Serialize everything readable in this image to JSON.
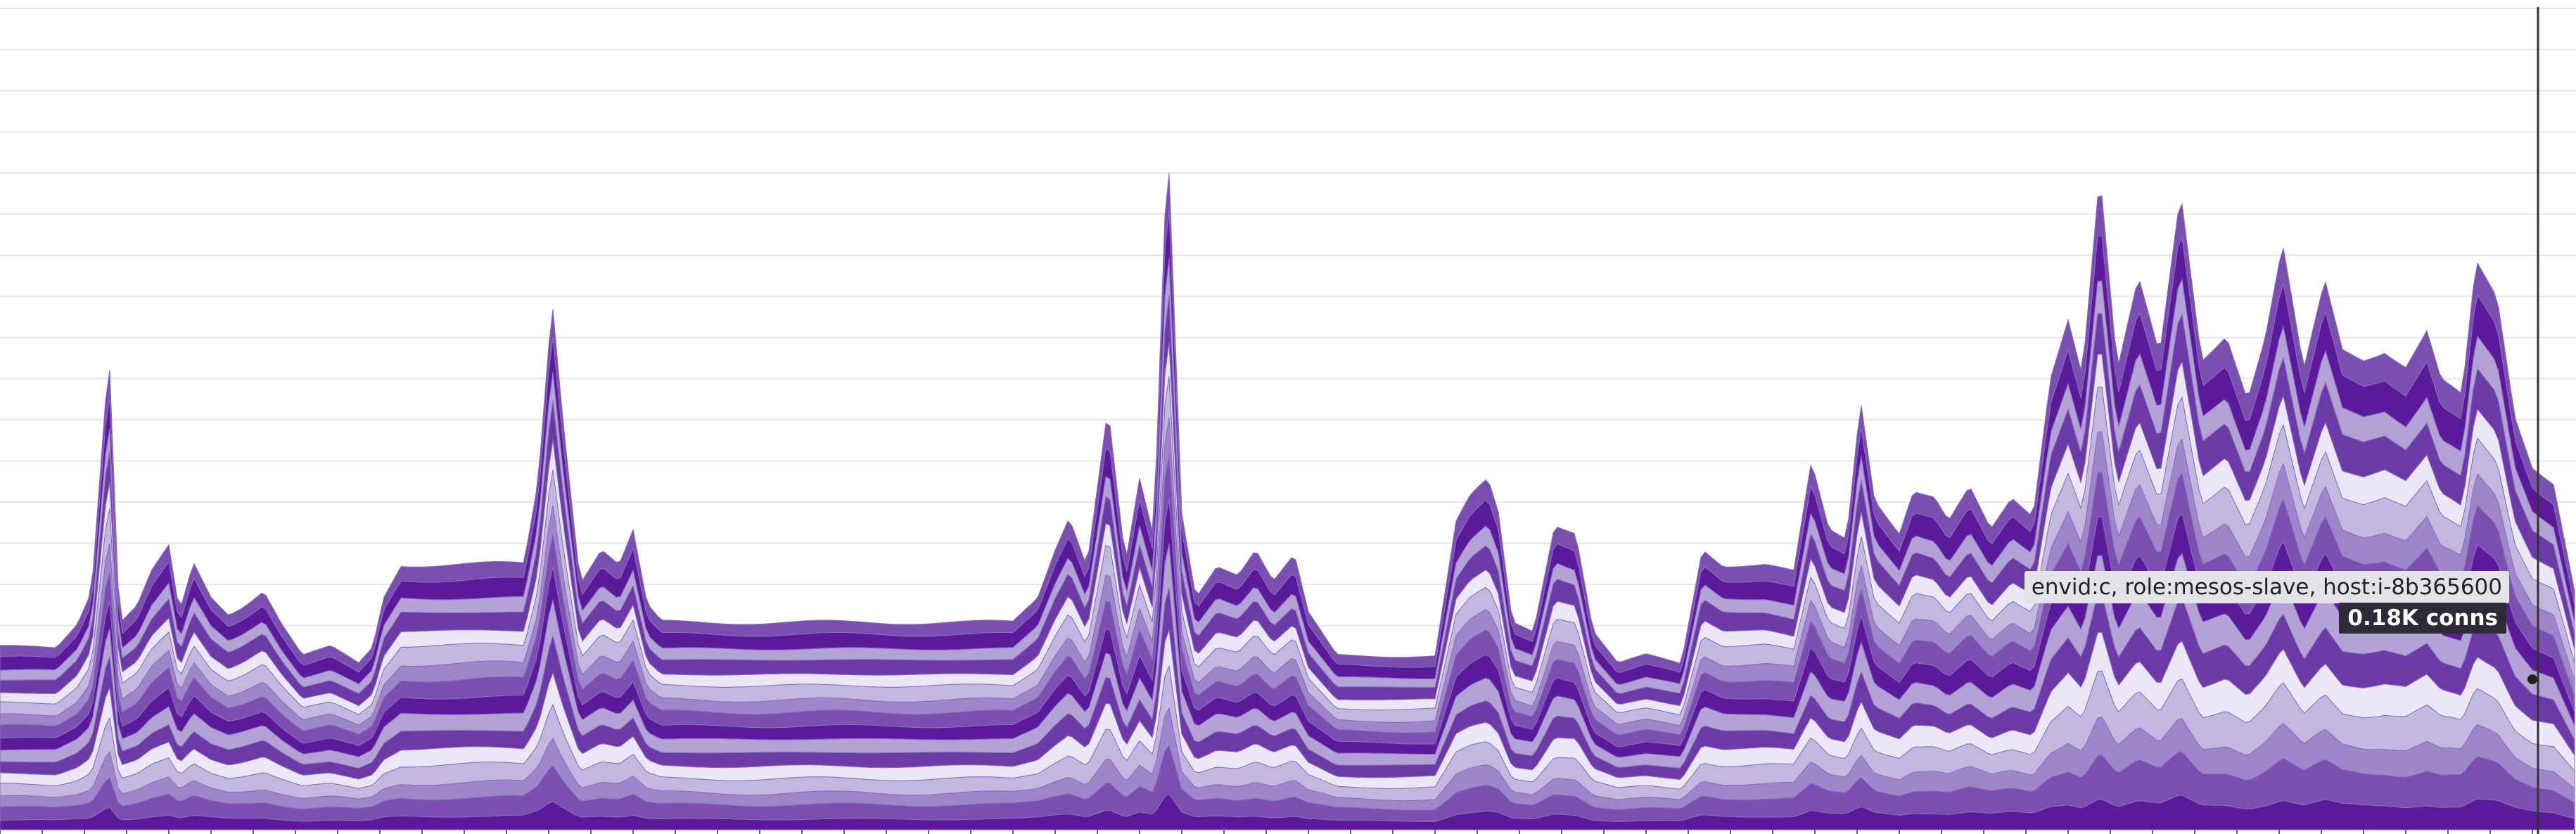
{
  "tooltip": {
    "host": "envid:c, role:mesos-slave, host:i-8b365600",
    "value": "0.18K conns"
  },
  "colors": {
    "palette": [
      "#5b1a9a",
      "#7a4fb0",
      "#9d86c9",
      "#c3b7e0",
      "#ebe7f6",
      "#6b3aa6",
      "#b3a2d6"
    ],
    "grid": "#e6e6e6",
    "cursor": "#333333"
  },
  "chart_data": {
    "type": "area",
    "stacked": true,
    "grid": true,
    "unit": "conns",
    "cursor_x": 3608,
    "hovered_value": 0.18,
    "total": [
      {
        "x": 0,
        "y": 0.22
      },
      {
        "x": 80,
        "y": 0.22
      },
      {
        "x": 110,
        "y": 0.25
      },
      {
        "x": 130,
        "y": 0.29
      },
      {
        "x": 155,
        "y": 0.58
      },
      {
        "x": 170,
        "y": 0.25
      },
      {
        "x": 195,
        "y": 0.27
      },
      {
        "x": 215,
        "y": 0.31
      },
      {
        "x": 240,
        "y": 0.34
      },
      {
        "x": 255,
        "y": 0.26
      },
      {
        "x": 275,
        "y": 0.32
      },
      {
        "x": 300,
        "y": 0.28
      },
      {
        "x": 325,
        "y": 0.26
      },
      {
        "x": 345,
        "y": 0.27
      },
      {
        "x": 375,
        "y": 0.29
      },
      {
        "x": 400,
        "y": 0.25
      },
      {
        "x": 430,
        "y": 0.21
      },
      {
        "x": 470,
        "y": 0.22
      },
      {
        "x": 510,
        "y": 0.2
      },
      {
        "x": 530,
        "y": 0.22
      },
      {
        "x": 545,
        "y": 0.28
      },
      {
        "x": 570,
        "y": 0.32
      },
      {
        "x": 620,
        "y": 0.32
      },
      {
        "x": 680,
        "y": 0.32
      },
      {
        "x": 745,
        "y": 0.32
      },
      {
        "x": 765,
        "y": 0.42
      },
      {
        "x": 785,
        "y": 0.64
      },
      {
        "x": 800,
        "y": 0.5
      },
      {
        "x": 825,
        "y": 0.3
      },
      {
        "x": 855,
        "y": 0.34
      },
      {
        "x": 880,
        "y": 0.32
      },
      {
        "x": 900,
        "y": 0.36
      },
      {
        "x": 920,
        "y": 0.27
      },
      {
        "x": 940,
        "y": 0.25
      },
      {
        "x": 980,
        "y": 0.25
      },
      {
        "x": 1050,
        "y": 0.25
      },
      {
        "x": 1150,
        "y": 0.25
      },
      {
        "x": 1250,
        "y": 0.25
      },
      {
        "x": 1350,
        "y": 0.25
      },
      {
        "x": 1440,
        "y": 0.25
      },
      {
        "x": 1475,
        "y": 0.28
      },
      {
        "x": 1500,
        "y": 0.34
      },
      {
        "x": 1520,
        "y": 0.38
      },
      {
        "x": 1545,
        "y": 0.32
      },
      {
        "x": 1575,
        "y": 0.51
      },
      {
        "x": 1600,
        "y": 0.32
      },
      {
        "x": 1620,
        "y": 0.42
      },
      {
        "x": 1640,
        "y": 0.35
      },
      {
        "x": 1660,
        "y": 0.83
      },
      {
        "x": 1680,
        "y": 0.38
      },
      {
        "x": 1700,
        "y": 0.28
      },
      {
        "x": 1730,
        "y": 0.32
      },
      {
        "x": 1760,
        "y": 0.31
      },
      {
        "x": 1785,
        "y": 0.34
      },
      {
        "x": 1810,
        "y": 0.3
      },
      {
        "x": 1840,
        "y": 0.33
      },
      {
        "x": 1860,
        "y": 0.26
      },
      {
        "x": 1900,
        "y": 0.21
      },
      {
        "x": 1990,
        "y": 0.21
      },
      {
        "x": 2040,
        "y": 0.21
      },
      {
        "x": 2070,
        "y": 0.37
      },
      {
        "x": 2090,
        "y": 0.4
      },
      {
        "x": 2115,
        "y": 0.42
      },
      {
        "x": 2130,
        "y": 0.38
      },
      {
        "x": 2150,
        "y": 0.25
      },
      {
        "x": 2180,
        "y": 0.24
      },
      {
        "x": 2210,
        "y": 0.37
      },
      {
        "x": 2240,
        "y": 0.36
      },
      {
        "x": 2265,
        "y": 0.24
      },
      {
        "x": 2300,
        "y": 0.2
      },
      {
        "x": 2340,
        "y": 0.21
      },
      {
        "x": 2390,
        "y": 0.2
      },
      {
        "x": 2420,
        "y": 0.34
      },
      {
        "x": 2450,
        "y": 0.32
      },
      {
        "x": 2480,
        "y": 0.32
      },
      {
        "x": 2510,
        "y": 0.32
      },
      {
        "x": 2550,
        "y": 0.31
      },
      {
        "x": 2575,
        "y": 0.44
      },
      {
        "x": 2600,
        "y": 0.36
      },
      {
        "x": 2625,
        "y": 0.35
      },
      {
        "x": 2645,
        "y": 0.52
      },
      {
        "x": 2665,
        "y": 0.4
      },
      {
        "x": 2700,
        "y": 0.36
      },
      {
        "x": 2720,
        "y": 0.41
      },
      {
        "x": 2750,
        "y": 0.4
      },
      {
        "x": 2770,
        "y": 0.37
      },
      {
        "x": 2800,
        "y": 0.41
      },
      {
        "x": 2830,
        "y": 0.36
      },
      {
        "x": 2860,
        "y": 0.4
      },
      {
        "x": 2890,
        "y": 0.38
      },
      {
        "x": 2915,
        "y": 0.55
      },
      {
        "x": 2940,
        "y": 0.62
      },
      {
        "x": 2960,
        "y": 0.55
      },
      {
        "x": 2985,
        "y": 0.79
      },
      {
        "x": 3010,
        "y": 0.55
      },
      {
        "x": 3040,
        "y": 0.66
      },
      {
        "x": 3070,
        "y": 0.57
      },
      {
        "x": 3100,
        "y": 0.77
      },
      {
        "x": 3130,
        "y": 0.57
      },
      {
        "x": 3165,
        "y": 0.6
      },
      {
        "x": 3195,
        "y": 0.52
      },
      {
        "x": 3220,
        "y": 0.59
      },
      {
        "x": 3245,
        "y": 0.7
      },
      {
        "x": 3275,
        "y": 0.55
      },
      {
        "x": 3305,
        "y": 0.66
      },
      {
        "x": 3330,
        "y": 0.58
      },
      {
        "x": 3360,
        "y": 0.57
      },
      {
        "x": 3390,
        "y": 0.58
      },
      {
        "x": 3420,
        "y": 0.56
      },
      {
        "x": 3450,
        "y": 0.6
      },
      {
        "x": 3470,
        "y": 0.54
      },
      {
        "x": 3500,
        "y": 0.52
      },
      {
        "x": 3520,
        "y": 0.68
      },
      {
        "x": 3550,
        "y": 0.64
      },
      {
        "x": 3575,
        "y": 0.5
      },
      {
        "x": 3600,
        "y": 0.44
      },
      {
        "x": 3630,
        "y": 0.42
      },
      {
        "x": 3662,
        "y": 0.28
      }
    ],
    "layer_count": 16,
    "ylim": [
      0,
      1.0
    ]
  }
}
